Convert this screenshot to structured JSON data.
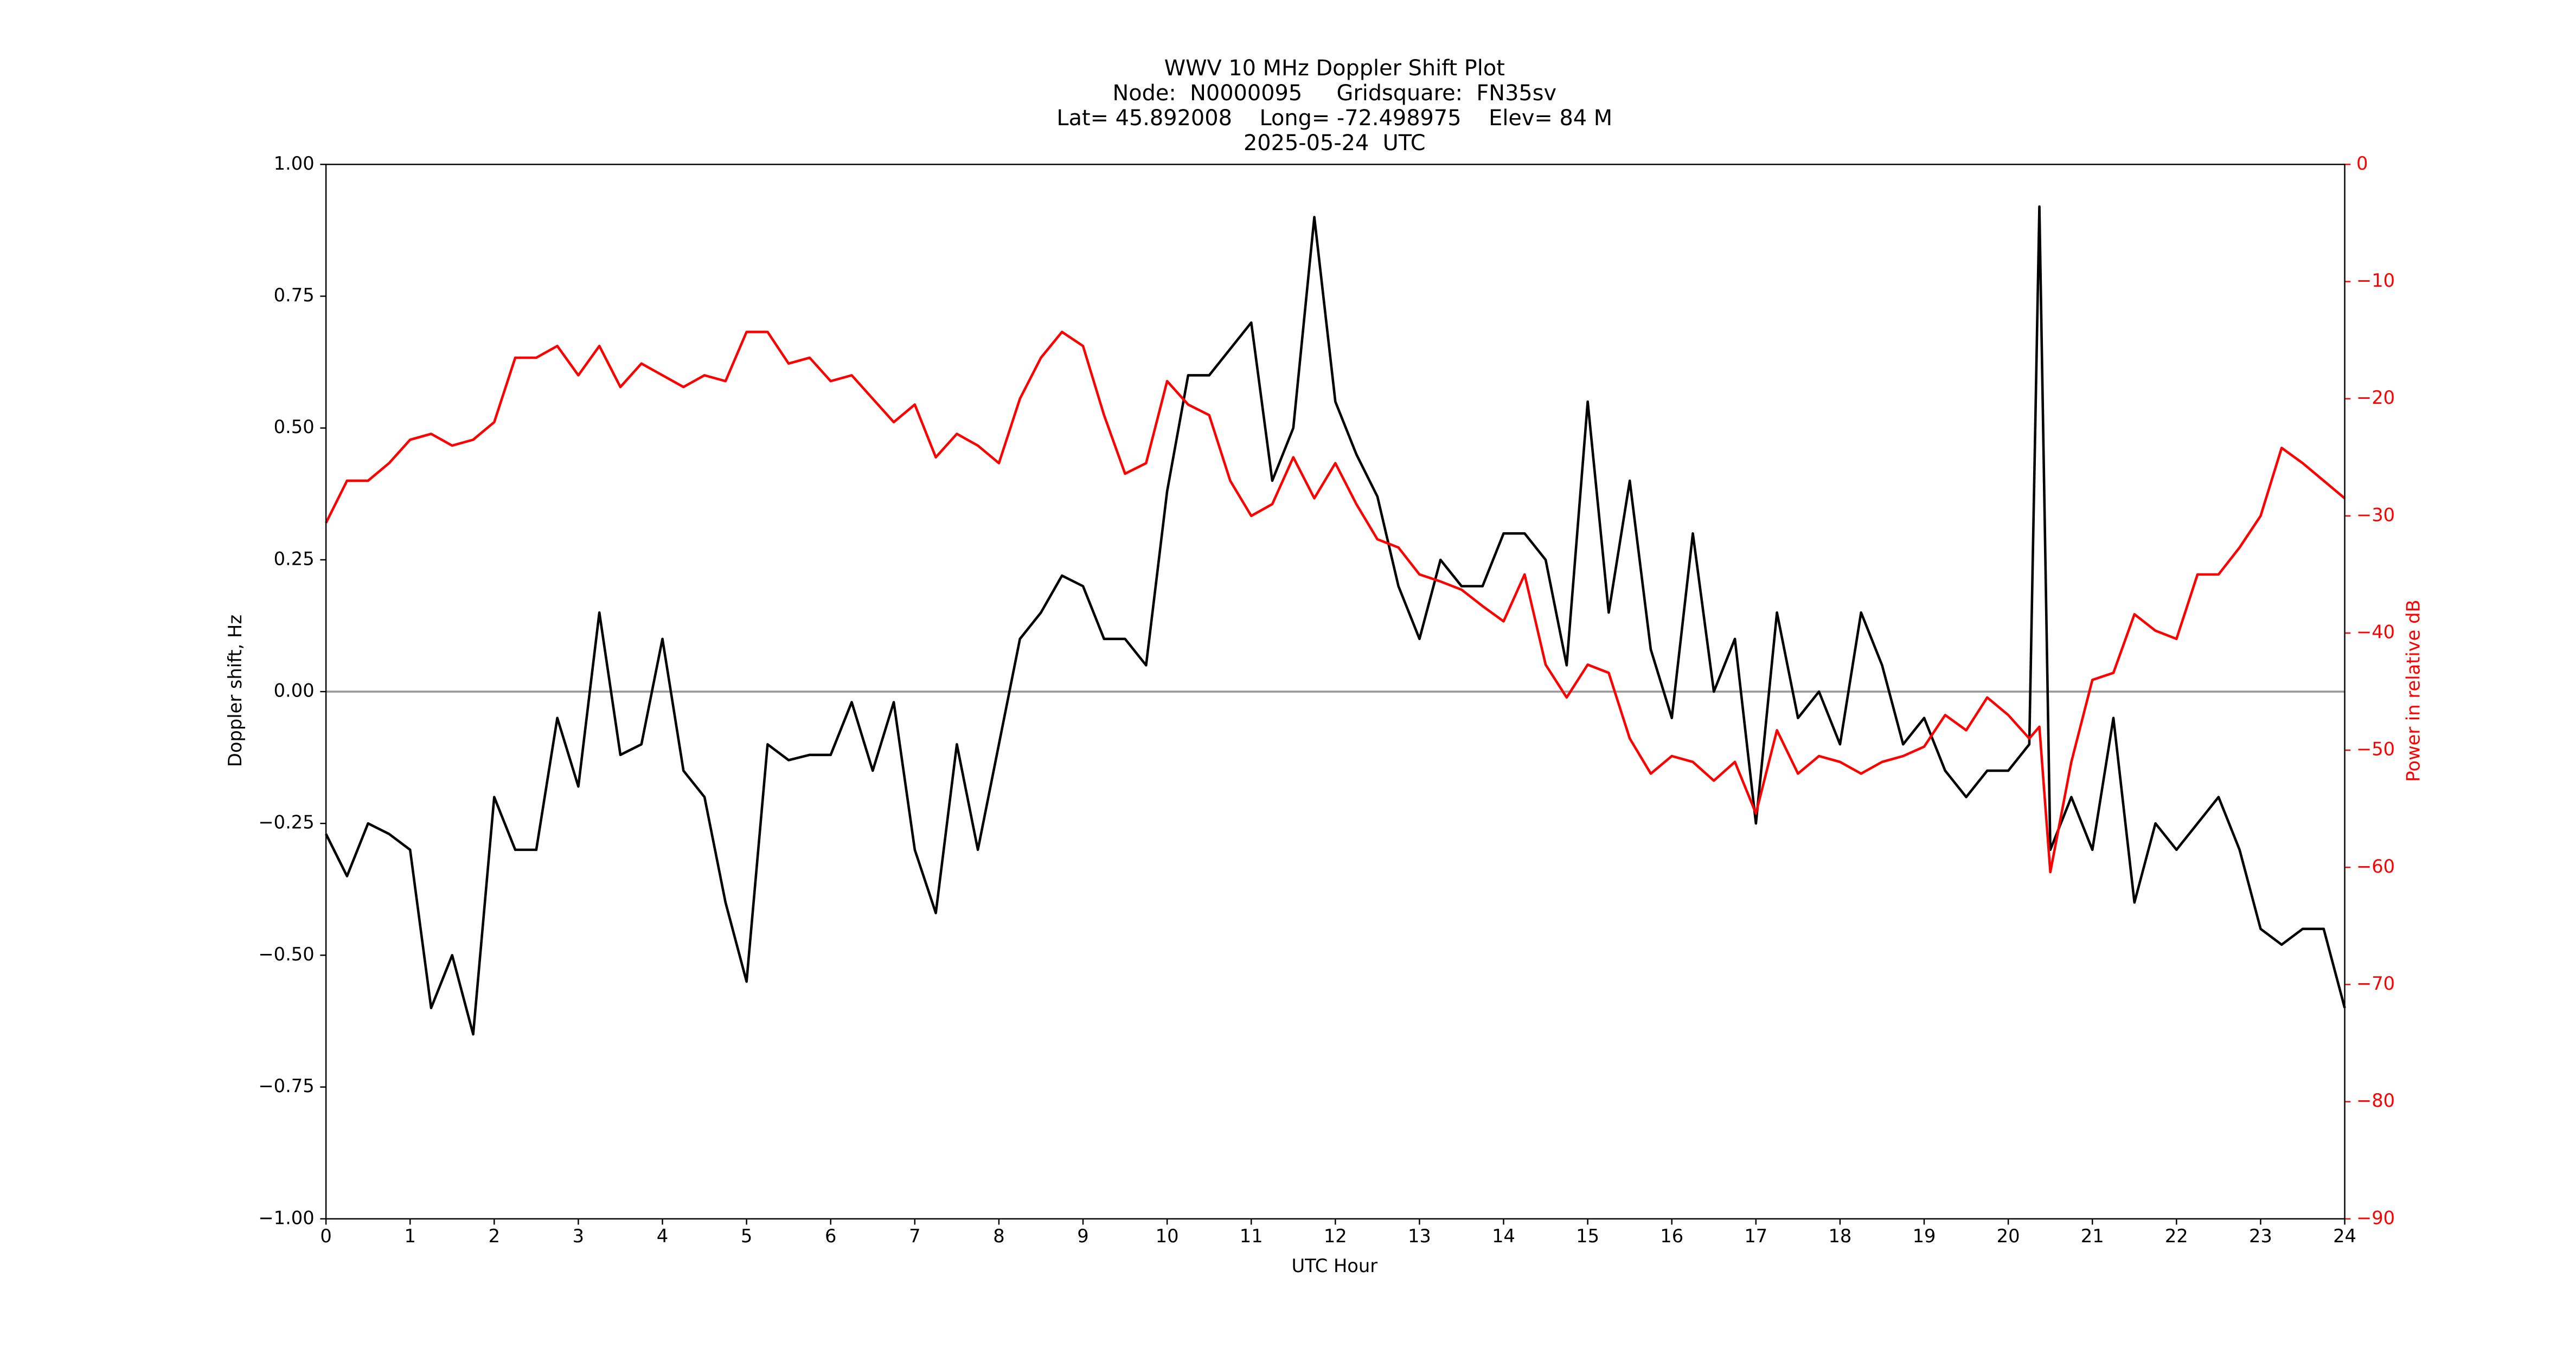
{
  "chart_data": {
    "type": "line",
    "title": [
      "WWV 10 MHz Doppler Shift Plot",
      "Node:  N0000095     Gridsquare:  FN35sv",
      "Lat= 45.892008    Long= -72.498975    Elev= 84 M",
      "2025-05-24  UTC"
    ],
    "xlabel": "UTC Hour",
    "ylabel": "Doppler shift, Hz",
    "y2label": "Power in relative dB",
    "y2color": "#ff0000",
    "xlim": [
      0,
      24
    ],
    "xticks": [
      0,
      1,
      2,
      3,
      4,
      5,
      6,
      7,
      8,
      9,
      10,
      11,
      12,
      13,
      14,
      15,
      16,
      17,
      18,
      19,
      20,
      21,
      22,
      23,
      24
    ],
    "ylim": [
      -1,
      1
    ],
    "yticks": [
      {
        "value": -1,
        "label": "−1.00"
      },
      {
        "value": -0.75,
        "label": "−0.75"
      },
      {
        "value": -0.5,
        "label": "−0.50"
      },
      {
        "value": -0.25,
        "label": "−0.25"
      },
      {
        "value": 0,
        "label": "0.00"
      },
      {
        "value": 0.25,
        "label": "0.25"
      },
      {
        "value": 0.5,
        "label": "0.50"
      },
      {
        "value": 0.75,
        "label": "0.75"
      },
      {
        "value": 1,
        "label": "1.00"
      }
    ],
    "y2lim": [
      -90,
      0
    ],
    "y2ticks": [
      {
        "value": -90,
        "label": "−90"
      },
      {
        "value": -80,
        "label": "−80"
      },
      {
        "value": -70,
        "label": "−70"
      },
      {
        "value": -60,
        "label": "−60"
      },
      {
        "value": -50,
        "label": "−50"
      },
      {
        "value": -40,
        "label": "−40"
      },
      {
        "value": -30,
        "label": "−30"
      },
      {
        "value": -20,
        "label": "−20"
      },
      {
        "value": -10,
        "label": "−10"
      },
      0
    ],
    "reference_line": 0,
    "x": [
      0,
      0.25,
      0.5,
      0.75,
      1,
      1.25,
      1.5,
      1.75,
      2,
      2.25,
      2.5,
      2.75,
      3,
      3.25,
      3.5,
      3.75,
      4,
      4.25,
      4.5,
      4.75,
      5,
      5.25,
      5.5,
      5.75,
      6,
      6.25,
      6.5,
      6.75,
      7,
      7.25,
      7.5,
      7.75,
      8,
      8.25,
      8.5,
      8.75,
      9,
      9.25,
      9.5,
      9.75,
      10,
      10.25,
      10.5,
      10.75,
      11,
      11.25,
      11.5,
      11.75,
      12,
      12.25,
      12.5,
      12.75,
      13,
      13.25,
      13.5,
      13.75,
      14,
      14.25,
      14.5,
      14.75,
      15,
      15.25,
      15.5,
      15.75,
      16,
      16.25,
      16.5,
      16.75,
      17,
      17.25,
      17.5,
      17.75,
      18,
      18.25,
      18.5,
      18.75,
      19,
      19.25,
      19.5,
      19.75,
      20,
      20.25,
      20.37,
      20.5,
      20.75,
      21,
      21.25,
      21.5,
      21.75,
      22,
      22.25,
      22.5,
      22.75,
      23,
      23.25,
      23.5,
      23.75,
      24
    ],
    "series": [
      {
        "color": "#000000",
        "values": [
          -0.27,
          -0.35,
          -0.25,
          -0.27,
          -0.3,
          -0.6,
          -0.5,
          -0.65,
          -0.2,
          -0.3,
          -0.3,
          -0.05,
          -0.18,
          0.15,
          -0.12,
          -0.1,
          0.1,
          -0.15,
          -0.2,
          -0.4,
          -0.55,
          -0.1,
          -0.13,
          -0.12,
          -0.12,
          -0.02,
          -0.15,
          -0.02,
          -0.3,
          -0.42,
          -0.1,
          -0.3,
          -0.1,
          0.1,
          0.15,
          0.22,
          0.2,
          0.1,
          0.1,
          0.05,
          0.38,
          0.6,
          0.6,
          0.65,
          0.7,
          0.4,
          0.5,
          0.9,
          0.55,
          0.45,
          0.37,
          0.2,
          0.1,
          0.25,
          0.2,
          0.2,
          0.3,
          0.3,
          0.25,
          0.05,
          0.55,
          0.15,
          0.4,
          0.08,
          -0.05,
          0.3,
          0.0,
          0.1,
          -0.25,
          0.15,
          -0.05,
          0.0,
          -0.1,
          0.15,
          0.05,
          -0.1,
          -0.05,
          -0.15,
          -0.2,
          -0.15,
          -0.15,
          -0.1,
          0.92,
          -0.3,
          -0.2,
          -0.3,
          -0.05,
          -0.4,
          -0.25,
          -0.3,
          -0.25,
          -0.2,
          -0.3,
          -0.45,
          -0.48,
          -0.45,
          -0.45,
          -0.6
        ]
      },
      {
        "color": "#ff0000",
        "axis": "y2",
        "values": [
          -30.6,
          -27,
          -27,
          -25.5,
          -23.5,
          -23,
          -24,
          -23.5,
          -22,
          -16.5,
          -16.5,
          -15.5,
          -18,
          -15.5,
          -19,
          -17,
          -18,
          -19,
          -18,
          -18.5,
          -14.3,
          -14.3,
          -17,
          -16.5,
          -18.5,
          -18,
          -20,
          -22,
          -20.5,
          -25,
          -23,
          -24,
          -25.5,
          -20,
          -16.5,
          -14.3,
          -15.5,
          -21.4,
          -26.4,
          -25.5,
          -18.5,
          -20.5,
          -21.4,
          -27,
          -30,
          -29,
          -25,
          -28.5,
          -25.5,
          -29,
          -32,
          -32.7,
          -35,
          -35.6,
          -36.3,
          -37.7,
          -39,
          -35,
          -42.7,
          -45.5,
          -42.7,
          -43.4,
          -49,
          -52,
          -50.5,
          -51,
          -52.6,
          -51,
          -55.4,
          -48.3,
          -52,
          -50.5,
          -51,
          -52,
          -51,
          -50.5,
          -49.7,
          -47,
          -48.3,
          -45.5,
          -47,
          -49,
          -48,
          -60.4,
          -51,
          -44,
          -43.4,
          -38.4,
          -39.8,
          -40.5,
          -35,
          -35,
          -32.7,
          -30,
          -24.2,
          -25.5,
          -27,
          -28.5
        ]
      }
    ]
  }
}
